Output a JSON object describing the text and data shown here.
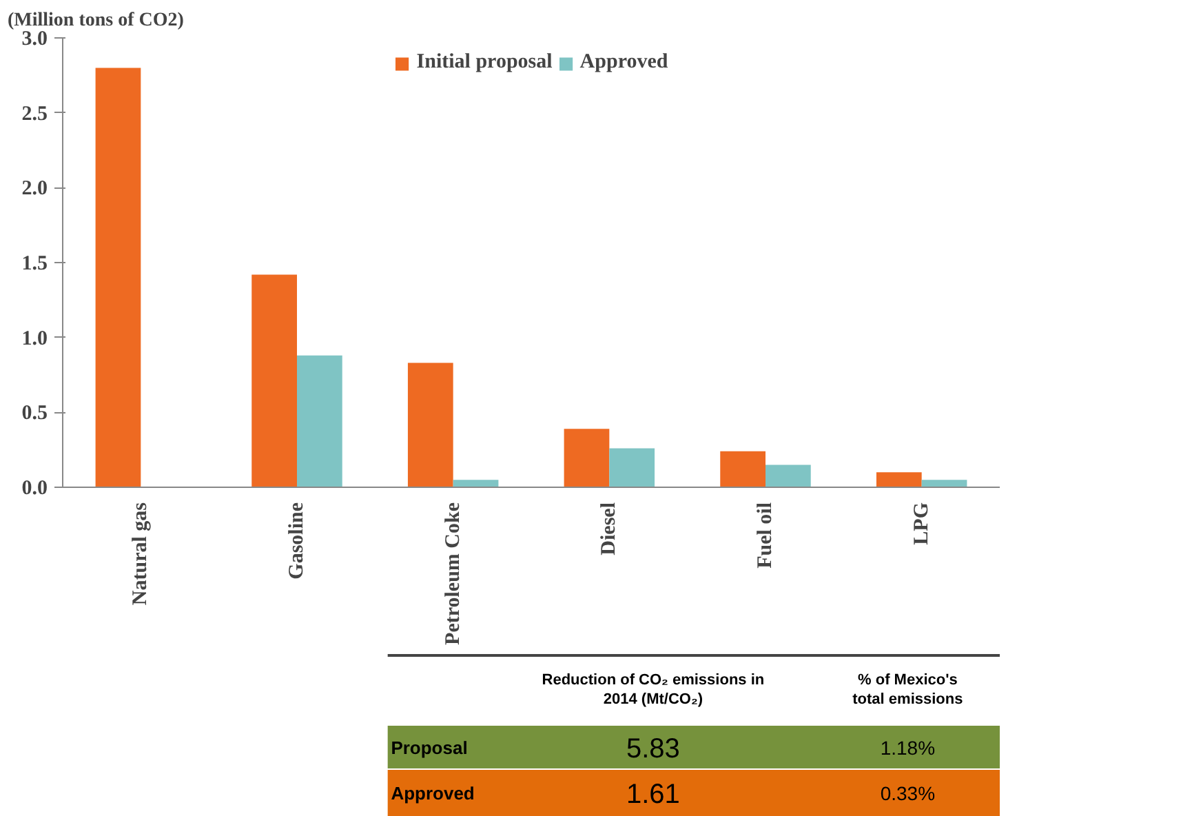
{
  "chart_data": {
    "type": "bar",
    "ylabel": "(Million tons of CO2)",
    "categories": [
      "Natural gas",
      "Gasoline",
      "Petroleum Coke",
      "Diesel",
      "Fuel oil",
      "LPG"
    ],
    "series": [
      {
        "name": "Initial proposal",
        "color": "#ee6a22",
        "values": [
          2.8,
          1.42,
          0.83,
          0.39,
          0.24,
          0.1
        ]
      },
      {
        "name": "Approved",
        "color": "#7fc4c4",
        "values": [
          null,
          0.88,
          0.05,
          0.26,
          0.15,
          0.05
        ]
      }
    ],
    "ylim": [
      0,
      3.0
    ],
    "yticks": [
      {
        "value": 0,
        "label": "0.0"
      },
      {
        "value": 0.5,
        "label": "0.5"
      },
      {
        "value": 1,
        "label": "1.0"
      },
      {
        "value": 1.5,
        "label": "1.5"
      },
      {
        "value": 2,
        "label": "2.0"
      },
      {
        "value": 2.5,
        "label": "2.5"
      },
      {
        "value": 3,
        "label": "3.0"
      }
    ],
    "grid": false,
    "legend": "top",
    "annotations": [
      "Reduction of CO₂ emissions in 2014 (Mt/CO₂)",
      "% of Mexico's total emissions",
      "Proposal",
      "5.83",
      "1.18%",
      "Approved",
      "1.61",
      "0.33%"
    ]
  }
}
